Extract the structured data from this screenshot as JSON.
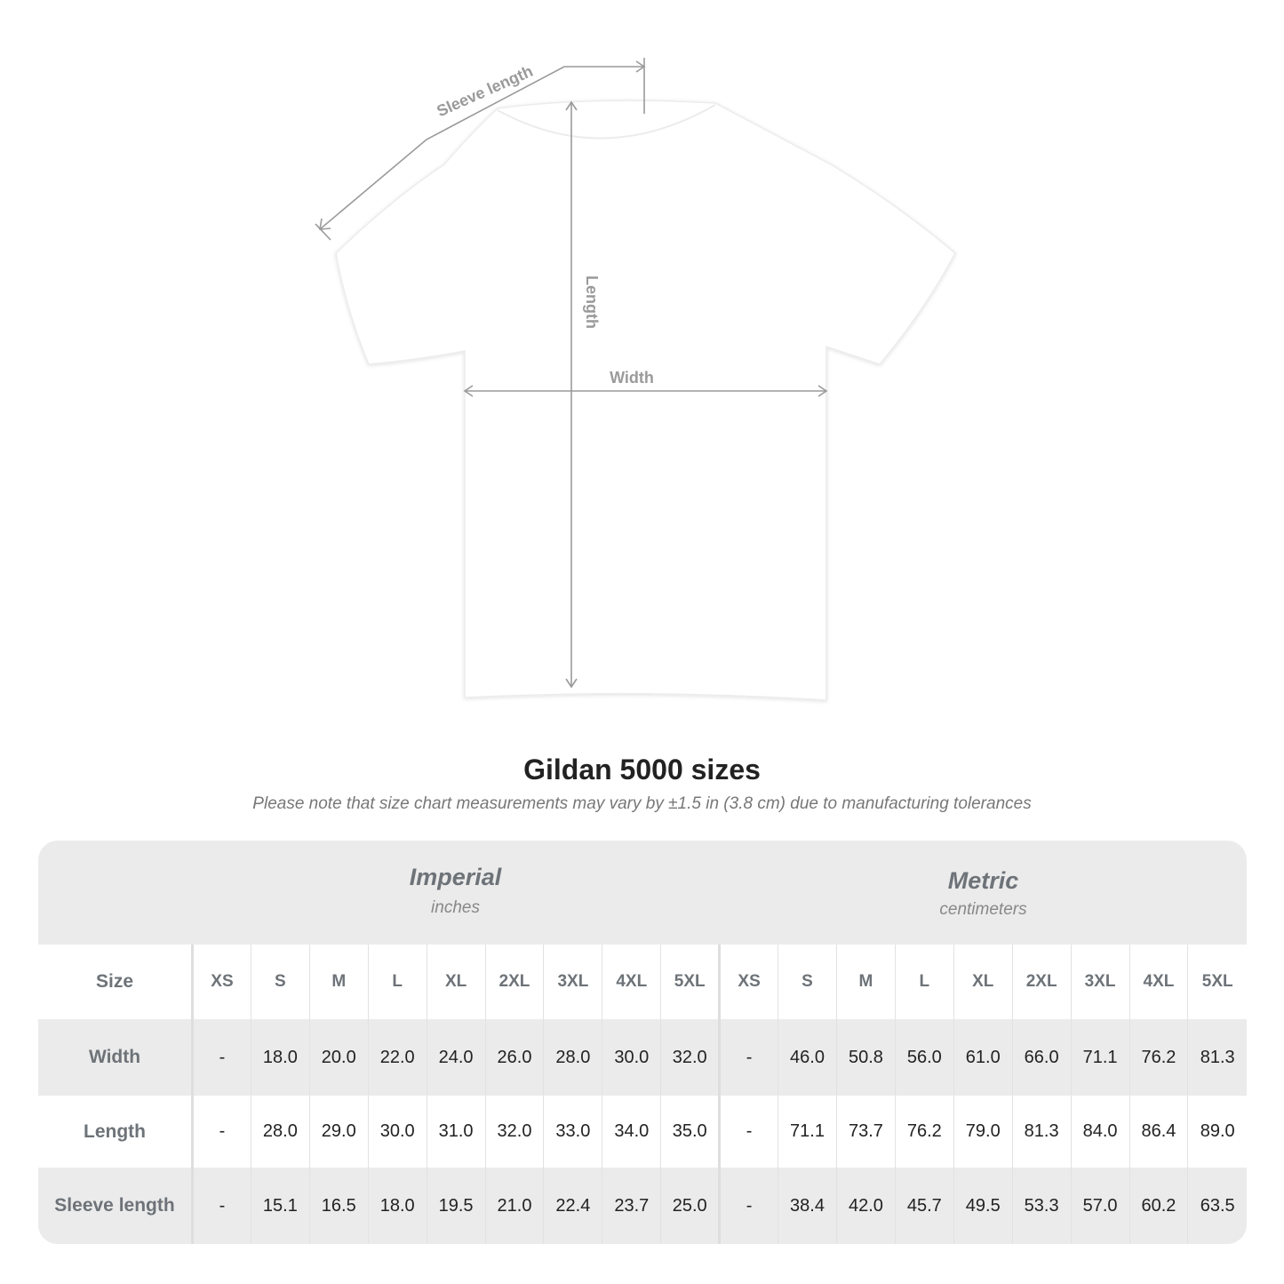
{
  "diagram": {
    "labels": {
      "sleeve": "Sleeve length",
      "length": "Length",
      "width": "Width"
    },
    "shirt_color": "#ffffff",
    "line_color": "#9a9a9a"
  },
  "title": "Gildan 5000 sizes",
  "note": "Please note that size chart measurements may vary by ±1.5 in (3.8 cm) due to manufacturing tolerances",
  "imperial": {
    "name": "Imperial",
    "unit": "inches"
  },
  "metric": {
    "name": "Metric",
    "unit": "centimeters"
  },
  "size_label": "Size",
  "sizes": [
    "XS",
    "S",
    "M",
    "L",
    "XL",
    "2XL",
    "3XL",
    "4XL",
    "5XL"
  ],
  "rows": [
    {
      "label": "Width",
      "imperial": [
        "-",
        "18.0",
        "20.0",
        "22.0",
        "24.0",
        "26.0",
        "28.0",
        "30.0",
        "32.0"
      ],
      "metric": [
        "-",
        "46.0",
        "50.8",
        "56.0",
        "61.0",
        "66.0",
        "71.1",
        "76.2",
        "81.3"
      ]
    },
    {
      "label": "Length",
      "imperial": [
        "-",
        "28.0",
        "29.0",
        "30.0",
        "31.0",
        "32.0",
        "33.0",
        "34.0",
        "35.0"
      ],
      "metric": [
        "-",
        "71.1",
        "73.7",
        "76.2",
        "79.0",
        "81.3",
        "84.0",
        "86.4",
        "89.0"
      ]
    },
    {
      "label": "Sleeve length",
      "imperial": [
        "-",
        "15.1",
        "16.5",
        "18.0",
        "19.5",
        "21.0",
        "22.4",
        "23.7",
        "25.0"
      ],
      "metric": [
        "-",
        "38.4",
        "42.0",
        "45.7",
        "49.5",
        "53.3",
        "57.0",
        "60.2",
        "63.5"
      ]
    }
  ]
}
